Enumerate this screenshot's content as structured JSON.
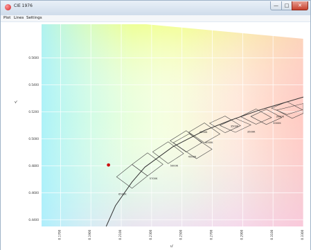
{
  "window": {
    "title": "CIE 1976",
    "controls": {
      "minimize_glyph": "—",
      "maximize_glyph": "□",
      "close_glyph": "✕"
    },
    "app_icon": "color-wheel-icon"
  },
  "menu": {
    "items": [
      "Plot",
      "Lines",
      "Settings"
    ]
  },
  "chart_data": {
    "type": "scatter",
    "xlabel": "u'",
    "ylabel": "v'",
    "xlim": [
      0.1575,
      0.33
    ],
    "ylim": [
      0.435,
      0.585
    ],
    "x_ticks": [
      "0.1700",
      "0.1900",
      "0.2100",
      "0.2300",
      "0.2500",
      "0.2700",
      "0.2900",
      "0.3100",
      "0.3300"
    ],
    "y_ticks": [
      "0.5600",
      "0.5400",
      "0.5200",
      "0.5000",
      "0.4800",
      "0.4600",
      "0.4400"
    ],
    "grid": true,
    "colors": {
      "marker": "#cc1010",
      "locus": "#333333",
      "grid": "#ffffff"
    },
    "measured_point": {
      "u": 0.2016,
      "v": 0.4806
    },
    "planckian_locus": [
      {
        "u": 0.2001,
        "v": 0.435
      },
      {
        "u": 0.2062,
        "v": 0.4504
      },
      {
        "u": 0.2171,
        "v": 0.468
      },
      {
        "u": 0.2256,
        "v": 0.479
      },
      {
        "u": 0.2439,
        "v": 0.494
      },
      {
        "u": 0.2648,
        "v": 0.5062
      },
      {
        "u": 0.2823,
        "v": 0.5139
      },
      {
        "u": 0.3007,
        "v": 0.5212
      },
      {
        "u": 0.3165,
        "v": 0.5265
      },
      {
        "u": 0.33,
        "v": 0.531
      }
    ],
    "cct_bins": [
      {
        "label": "6500K",
        "corners": [
          [
            0.2069,
            0.4718
          ],
          [
            0.2171,
            0.4633
          ],
          [
            0.2273,
            0.4725
          ],
          [
            0.2171,
            0.481
          ]
        ]
      },
      {
        "label": "5700K",
        "corners": [
          [
            0.2171,
            0.481
          ],
          [
            0.2273,
            0.4725
          ],
          [
            0.2375,
            0.4811
          ],
          [
            0.2273,
            0.4896
          ]
        ]
      },
      {
        "label": "5000K",
        "corners": [
          [
            0.2307,
            0.4903
          ],
          [
            0.2409,
            0.4816
          ],
          [
            0.2511,
            0.4891
          ],
          [
            0.2409,
            0.4978
          ]
        ]
      },
      {
        "label": "4500K",
        "corners": [
          [
            0.2422,
            0.4986
          ],
          [
            0.2528,
            0.4902
          ],
          [
            0.263,
            0.4971
          ],
          [
            0.2528,
            0.506
          ]
        ]
      },
      {
        "label": "4000K",
        "corners": [
          [
            0.2545,
            0.5049
          ],
          [
            0.2648,
            0.4971
          ],
          [
            0.275,
            0.5036
          ],
          [
            0.2648,
            0.5118
          ]
        ]
      },
      {
        "label": "3500K",
        "corners": [
          [
            0.275,
            0.5099
          ],
          [
            0.2852,
            0.5048
          ],
          [
            0.2954,
            0.5103
          ],
          [
            0.2852,
            0.5152
          ]
        ]
      },
      {
        "label": "3000K",
        "corners": [
          [
            0.2954,
            0.5166
          ],
          [
            0.3056,
            0.5106
          ],
          [
            0.3158,
            0.5158
          ],
          [
            0.3056,
            0.5219
          ]
        ]
      },
      {
        "label": "2700K",
        "corners": [
          [
            0.3124,
            0.5213
          ],
          [
            0.3226,
            0.5152
          ],
          [
            0.33,
            0.5189
          ],
          [
            0.33,
            0.5262
          ]
        ]
      }
    ],
    "extra_bins": [
      [
        [
          0.2443,
          0.4971
        ],
        [
          0.2596,
          0.4853
        ],
        [
          0.2698,
          0.4923
        ],
        [
          0.2548,
          0.5038
        ]
      ],
      [
        [
          0.2682,
          0.5116
        ],
        [
          0.2784,
          0.5045
        ],
        [
          0.2886,
          0.5098
        ],
        [
          0.2784,
          0.5169
        ]
      ],
      [
        [
          0.2886,
          0.5165
        ],
        [
          0.2988,
          0.5108
        ],
        [
          0.309,
          0.5158
        ],
        [
          0.2988,
          0.5222
        ]
      ],
      [
        [
          0.309,
          0.5228
        ],
        [
          0.3192,
          0.518
        ],
        [
          0.3294,
          0.5215
        ],
        [
          0.3192,
          0.5275
        ]
      ]
    ],
    "cct_texts": [
      {
        "text": "6500K",
        "u": 0.2082,
        "v": 0.4585
      },
      {
        "text": "5700K",
        "u": 0.2286,
        "v": 0.47
      },
      {
        "text": "5000K",
        "u": 0.2422,
        "v": 0.4794
      },
      {
        "text": "4500K",
        "u": 0.2541,
        "v": 0.486
      },
      {
        "text": "4000K",
        "u": 0.2652,
        "v": 0.4966
      },
      {
        "text": "4500K",
        "u": 0.2615,
        "v": 0.5043
      },
      {
        "text": "3500K",
        "u": 0.293,
        "v": 0.5046
      },
      {
        "text": "3500K",
        "u": 0.282,
        "v": 0.5087
      },
      {
        "text": "3000K",
        "u": 0.31,
        "v": 0.511
      },
      {
        "text": "3000K",
        "u": 0.312,
        "v": 0.516
      }
    ]
  }
}
